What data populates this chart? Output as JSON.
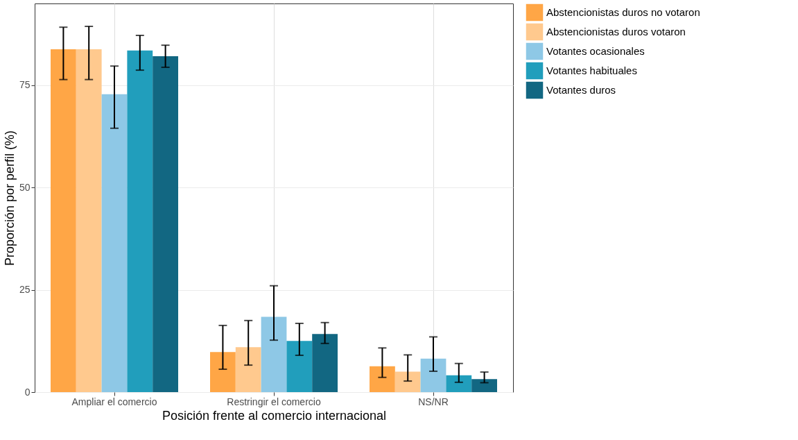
{
  "chart_data": {
    "type": "bar",
    "xlabel": "Posición frente al comercio internacional",
    "ylabel": "Proporción por perfil (%)",
    "categories": [
      "Ampliar el comercio",
      "Restringir el comercio",
      "NS/NR"
    ],
    "series": [
      {
        "name": "Abstencionistas duros no votaron",
        "color": "#ffa646",
        "values": [
          83.8,
          9.8,
          6.3
        ],
        "errors": [
          [
            76.4,
            89.2
          ],
          [
            5.6,
            16.3
          ],
          [
            3.6,
            10.8
          ]
        ]
      },
      {
        "name": "Abstencionistas duros votaron",
        "color": "#ffc98e",
        "values": [
          83.8,
          11.0,
          5.0
        ],
        "errors": [
          [
            76.4,
            89.4
          ],
          [
            6.6,
            17.5
          ],
          [
            2.7,
            9.1
          ]
        ]
      },
      {
        "name": "Votantes ocasionales",
        "color": "#8ec8e6",
        "values": [
          72.8,
          18.4,
          8.2
        ],
        "errors": [
          [
            64.5,
            79.7
          ],
          [
            12.7,
            26.0
          ],
          [
            5.1,
            13.5
          ]
        ]
      },
      {
        "name": "Votantes habituales",
        "color": "#219ebc",
        "values": [
          83.5,
          12.5,
          4.1
        ],
        "errors": [
          [
            78.7,
            87.2
          ],
          [
            9.0,
            16.8
          ],
          [
            2.4,
            7.0
          ]
        ]
      },
      {
        "name": "Votantes duros",
        "color": "#126782",
        "values": [
          82.1,
          14.2,
          3.2
        ],
        "errors": [
          [
            79.4,
            84.8
          ],
          [
            11.9,
            17.0
          ],
          [
            2.3,
            4.9
          ]
        ]
      }
    ],
    "ylim": [
      0,
      95
    ],
    "yticks": [
      0,
      25,
      50,
      75
    ],
    "grid": true,
    "legend": "right"
  }
}
